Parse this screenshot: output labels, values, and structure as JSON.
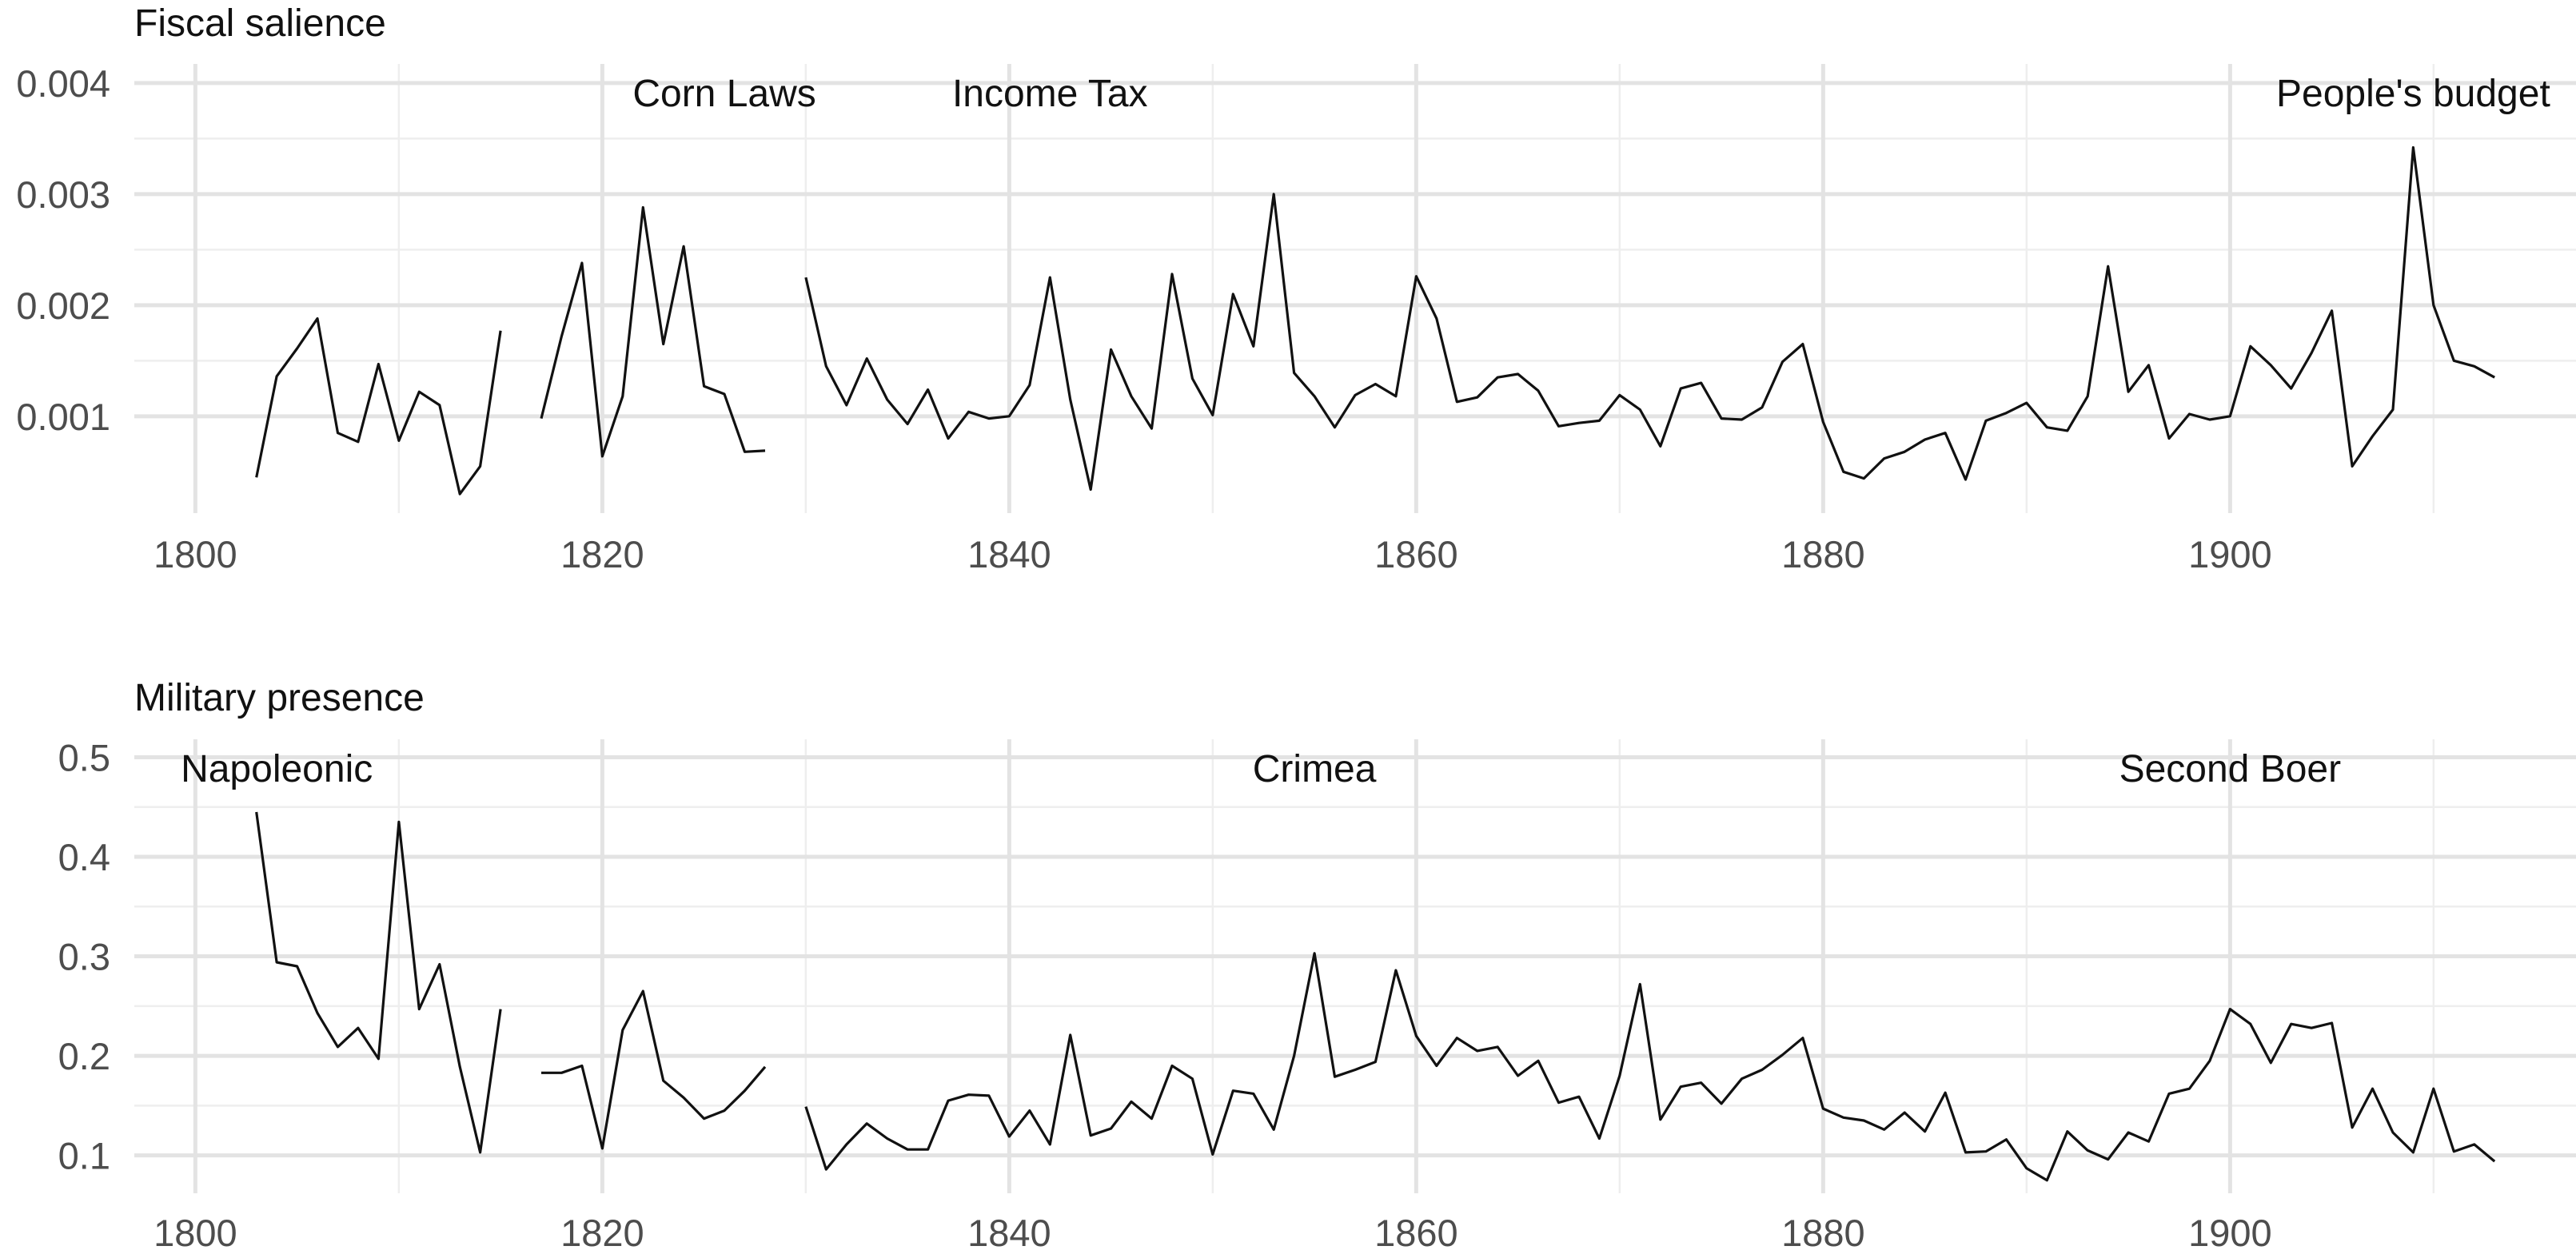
{
  "chart_data": [
    {
      "type": "line",
      "title": "Fiscal salience",
      "xlabel": "",
      "ylabel": "",
      "xlim": [
        1797,
        1917
      ],
      "ylim": [
        0.0002,
        0.0041
      ],
      "x_ticks": [
        1800,
        1820,
        1840,
        1860,
        1880,
        1900
      ],
      "x_tick_labels": [
        "1800",
        "1820",
        "1840",
        "1860",
        "1880",
        "1900"
      ],
      "y_ticks": [
        0.001,
        0.002,
        0.003,
        0.004
      ],
      "y_tick_labels": [
        "0.001",
        "0.002",
        "0.003",
        "0.004"
      ],
      "grid": true,
      "annotations": [
        {
          "text": "Corn Laws",
          "x": 1826,
          "y": 0.004
        },
        {
          "text": "Income Tax",
          "x": 1842,
          "y": 0.004
        },
        {
          "text": "People's budget",
          "x": 1909,
          "y": 0.004
        }
      ],
      "segments": [
        {
          "x": [
            1803,
            1804,
            1805,
            1806,
            1807,
            1808,
            1809,
            1810,
            1811,
            1812,
            1813,
            1814,
            1815
          ],
          "y": [
            0.00045,
            0.00136,
            0.00161,
            0.00188,
            0.00085,
            0.00077,
            0.00147,
            0.00078,
            0.00122,
            0.0011,
            0.0003,
            0.00055,
            0.00177
          ]
        },
        {
          "x": [
            1817,
            1818,
            1819,
            1820,
            1821,
            1822,
            1823,
            1824,
            1825,
            1826,
            1827,
            1828
          ],
          "y": [
            0.00098,
            0.00172,
            0.00238,
            0.00064,
            0.00118,
            0.00288,
            0.00165,
            0.00253,
            0.00127,
            0.0012,
            0.00068,
            0.00069
          ]
        },
        {
          "x": [
            1830,
            1831,
            1832,
            1833,
            1834,
            1835,
            1836,
            1837,
            1838,
            1839,
            1840,
            1841,
            1842,
            1843,
            1844,
            1845,
            1846,
            1847,
            1848,
            1849,
            1850,
            1851,
            1852,
            1853,
            1854,
            1855,
            1856,
            1857,
            1858,
            1859,
            1860,
            1861,
            1862,
            1863,
            1864,
            1865,
            1866,
            1867,
            1868,
            1869,
            1870,
            1871,
            1872,
            1873,
            1874,
            1875,
            1876,
            1877,
            1878,
            1879,
            1880,
            1881,
            1882,
            1883,
            1884,
            1885,
            1886,
            1887,
            1888,
            1889,
            1890,
            1891,
            1892,
            1893,
            1894,
            1895,
            1896,
            1897,
            1898,
            1899,
            1900,
            1901,
            1902,
            1903,
            1904,
            1905,
            1906,
            1907,
            1908,
            1909,
            1910,
            1911,
            1912,
            1913
          ],
          "y": [
            0.00225,
            0.00145,
            0.0011,
            0.00152,
            0.00115,
            0.00093,
            0.00124,
            0.0008,
            0.00104,
            0.00098,
            0.001,
            0.00128,
            0.00225,
            0.00115,
            0.00034,
            0.0016,
            0.00118,
            0.00089,
            0.00228,
            0.00134,
            0.00101,
            0.0021,
            0.00163,
            0.003,
            0.00139,
            0.00118,
            0.0009,
            0.00119,
            0.00129,
            0.00118,
            0.00226,
            0.00188,
            0.00113,
            0.00117,
            0.00135,
            0.00138,
            0.00123,
            0.00091,
            0.00094,
            0.00096,
            0.00119,
            0.00106,
            0.00073,
            0.00125,
            0.0013,
            0.00098,
            0.00097,
            0.00108,
            0.00149,
            0.00165,
            0.00095,
            0.0005,
            0.00044,
            0.00062,
            0.00068,
            0.00079,
            0.00085,
            0.00043,
            0.00096,
            0.00103,
            0.00112,
            0.0009,
            0.00087,
            0.00118,
            0.00235,
            0.00122,
            0.00146,
            0.0008,
            0.00102,
            0.00097,
            0.001,
            0.00163,
            0.00146,
            0.00125,
            0.00157,
            0.00195,
            0.00055,
            0.00082,
            0.00106,
            0.00342,
            0.002,
            0.0015,
            0.00145,
            0.00135
          ]
        }
      ]
    },
    {
      "type": "line",
      "title": "Military presence",
      "xlabel": "",
      "ylabel": "",
      "xlim": [
        1797,
        1917
      ],
      "ylim": [
        0.07,
        0.51
      ],
      "x_ticks": [
        1800,
        1820,
        1840,
        1860,
        1880,
        1900
      ],
      "x_tick_labels": [
        "1800",
        "1820",
        "1840",
        "1860",
        "1880",
        "1900"
      ],
      "y_ticks": [
        0.1,
        0.2,
        0.3,
        0.4,
        0.5
      ],
      "y_tick_labels": [
        "0.1",
        "0.2",
        "0.3",
        "0.4",
        "0.5"
      ],
      "grid": true,
      "annotations": [
        {
          "text": "Napoleonic",
          "x": 1804,
          "y": 0.5
        },
        {
          "text": "Crimea",
          "x": 1855,
          "y": 0.5
        },
        {
          "text": "Second Boer",
          "x": 1900,
          "y": 0.5
        }
      ],
      "segments": [
        {
          "x": [
            1803,
            1804,
            1805,
            1806,
            1807,
            1808,
            1809,
            1810,
            1811,
            1812,
            1813,
            1814,
            1815
          ],
          "y": [
            0.445,
            0.294,
            0.29,
            0.243,
            0.209,
            0.228,
            0.197,
            0.435,
            0.247,
            0.292,
            0.189,
            0.103,
            0.247
          ]
        },
        {
          "x": [
            1817,
            1818,
            1819,
            1820,
            1821,
            1822,
            1823,
            1824,
            1825,
            1826,
            1827,
            1828
          ],
          "y": [
            0.183,
            0.183,
            0.19,
            0.107,
            0.226,
            0.265,
            0.175,
            0.158,
            0.137,
            0.145,
            0.165,
            0.189
          ]
        },
        {
          "x": [
            1830,
            1831,
            1832,
            1833,
            1834,
            1835,
            1836,
            1837,
            1838,
            1839,
            1840,
            1841,
            1842,
            1843,
            1844,
            1845,
            1846,
            1847,
            1848,
            1849,
            1850,
            1851,
            1852,
            1853,
            1854,
            1855,
            1856,
            1857,
            1858,
            1859,
            1860,
            1861,
            1862,
            1863,
            1864,
            1865,
            1866,
            1867,
            1868,
            1869,
            1870,
            1871,
            1872,
            1873,
            1874,
            1875,
            1876,
            1877,
            1878,
            1879,
            1880,
            1881,
            1882,
            1883,
            1884,
            1885,
            1886,
            1887,
            1888,
            1889,
            1890,
            1891,
            1892,
            1893,
            1894,
            1895,
            1896,
            1897,
            1898,
            1899,
            1900,
            1901,
            1902,
            1903,
            1904,
            1905,
            1906,
            1907,
            1908,
            1909,
            1910,
            1911,
            1912,
            1913
          ],
          "y": [
            0.149,
            0.086,
            0.111,
            0.132,
            0.117,
            0.106,
            0.106,
            0.155,
            0.161,
            0.16,
            0.119,
            0.145,
            0.111,
            0.221,
            0.12,
            0.127,
            0.154,
            0.137,
            0.19,
            0.177,
            0.101,
            0.165,
            0.162,
            0.126,
            0.2,
            0.303,
            0.179,
            0.186,
            0.194,
            0.286,
            0.22,
            0.19,
            0.218,
            0.205,
            0.209,
            0.18,
            0.195,
            0.153,
            0.159,
            0.117,
            0.18,
            0.272,
            0.136,
            0.169,
            0.173,
            0.152,
            0.177,
            0.186,
            0.201,
            0.218,
            0.147,
            0.138,
            0.135,
            0.126,
            0.143,
            0.124,
            0.163,
            0.103,
            0.104,
            0.116,
            0.087,
            0.075,
            0.124,
            0.105,
            0.096,
            0.123,
            0.114,
            0.162,
            0.167,
            0.195,
            0.247,
            0.232,
            0.193,
            0.232,
            0.228,
            0.233,
            0.128,
            0.167,
            0.123,
            0.103,
            0.167,
            0.104,
            0.111,
            0.094
          ]
        }
      ]
    }
  ]
}
